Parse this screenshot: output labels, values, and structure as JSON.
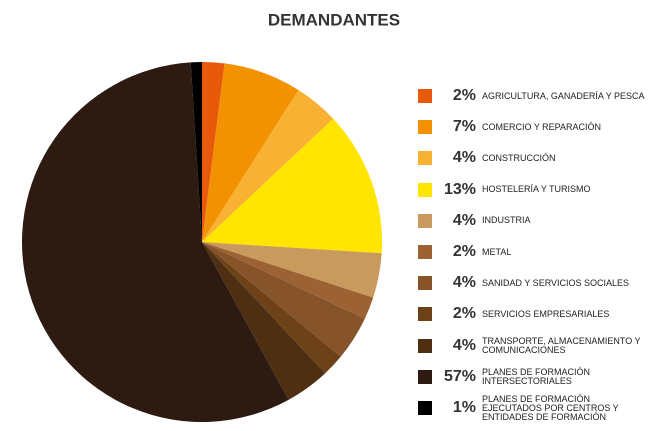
{
  "chart_data": {
    "type": "pie",
    "title": "DEMANDANTES",
    "categories": [
      "AGRICULTURA, GANADERÍA Y PESCA",
      "COMERCIO Y REPARACIÓN",
      "CONSTRUCCIÓN",
      "HOSTELERÍA Y TURISMO",
      "INDUSTRIA",
      "METAL",
      "SANIDAD Y SERVICIOS SOCIALES",
      "SERVICIOS EMPRESARIALES",
      "TRANSPORTE, ALMACENAMIENTO Y COMUNICACIONES",
      "PLANES DE FORMACIÓN INTERSECTORIALES",
      "PLANES DE FORMACIÓN EJECUTADOS POR CENTROS Y ENTIDADES DE FORMACIÓN"
    ],
    "values": [
      2,
      7,
      4,
      13,
      4,
      2,
      4,
      2,
      4,
      57,
      1
    ],
    "value_labels": [
      "2%",
      "7%",
      "4%",
      "13%",
      "4%",
      "2%",
      "4%",
      "2%",
      "4%",
      "57%",
      "1%"
    ],
    "colors": [
      "#e8590c",
      "#f39200",
      "#f8b133",
      "#ffe500",
      "#c89a5e",
      "#9c6233",
      "#87542a",
      "#6e4218",
      "#4e2f12",
      "#2d1a10",
      "#000000"
    ],
    "legend": "right"
  }
}
